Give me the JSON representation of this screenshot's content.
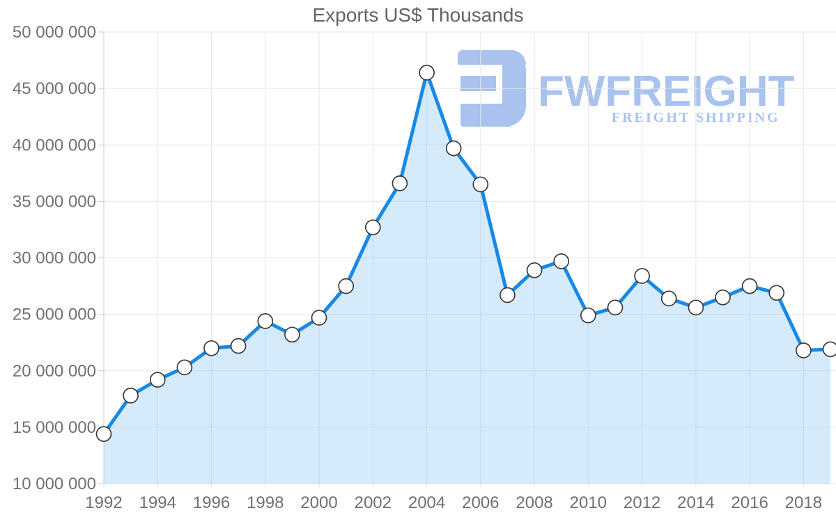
{
  "chart_data": {
    "type": "area",
    "title": "Exports US$ Thousands",
    "xlabel": "",
    "ylabel": "",
    "x": [
      1992,
      1993,
      1994,
      1995,
      1996,
      1997,
      1998,
      1999,
      2000,
      2001,
      2002,
      2003,
      2004,
      2005,
      2006,
      2007,
      2008,
      2009,
      2010,
      2011,
      2012,
      2013,
      2014,
      2015,
      2016,
      2017,
      2018,
      2019
    ],
    "series": [
      {
        "name": "Exports US$ Thousands",
        "values": [
          14400000,
          17800000,
          19200000,
          20300000,
          22000000,
          22200000,
          24400000,
          23200000,
          24700000,
          27500000,
          32700000,
          36600000,
          46400000,
          39700000,
          36500000,
          26700000,
          28900000,
          29700000,
          24900000,
          25600000,
          28400000,
          26400000,
          25600000,
          26500000,
          27500000,
          26900000,
          21800000,
          21900000
        ]
      }
    ],
    "ylim": [
      10000000,
      50000000
    ],
    "ytick_step": 5000000,
    "ytick_labels": [
      "10 000 000",
      "15 000 000",
      "20 000 000",
      "25 000 000",
      "30 000 000",
      "35 000 000",
      "40 000 000",
      "45 000 000",
      "50 000 000"
    ],
    "xtick_labels": [
      "1992",
      "1994",
      "1996",
      "1998",
      "2000",
      "2002",
      "2004",
      "2006",
      "2008",
      "2010",
      "2012",
      "2014",
      "2016",
      "2018"
    ],
    "grid": true,
    "legend_position": "none"
  },
  "watermark": {
    "brand": "FWFREIGHT",
    "tagline": "FREIGHT SHIPPING"
  },
  "colors": {
    "line": "#1789e6",
    "area_fill": "rgba(144,200,244,0.38)",
    "marker_fill": "#ffffff",
    "marker_stroke": "#3c3c3c",
    "grid": "#e6e6e6",
    "axis": "#c9c9c9",
    "tick_label": "#707070",
    "title": "#646464",
    "watermark": "#a9c2ee"
  }
}
